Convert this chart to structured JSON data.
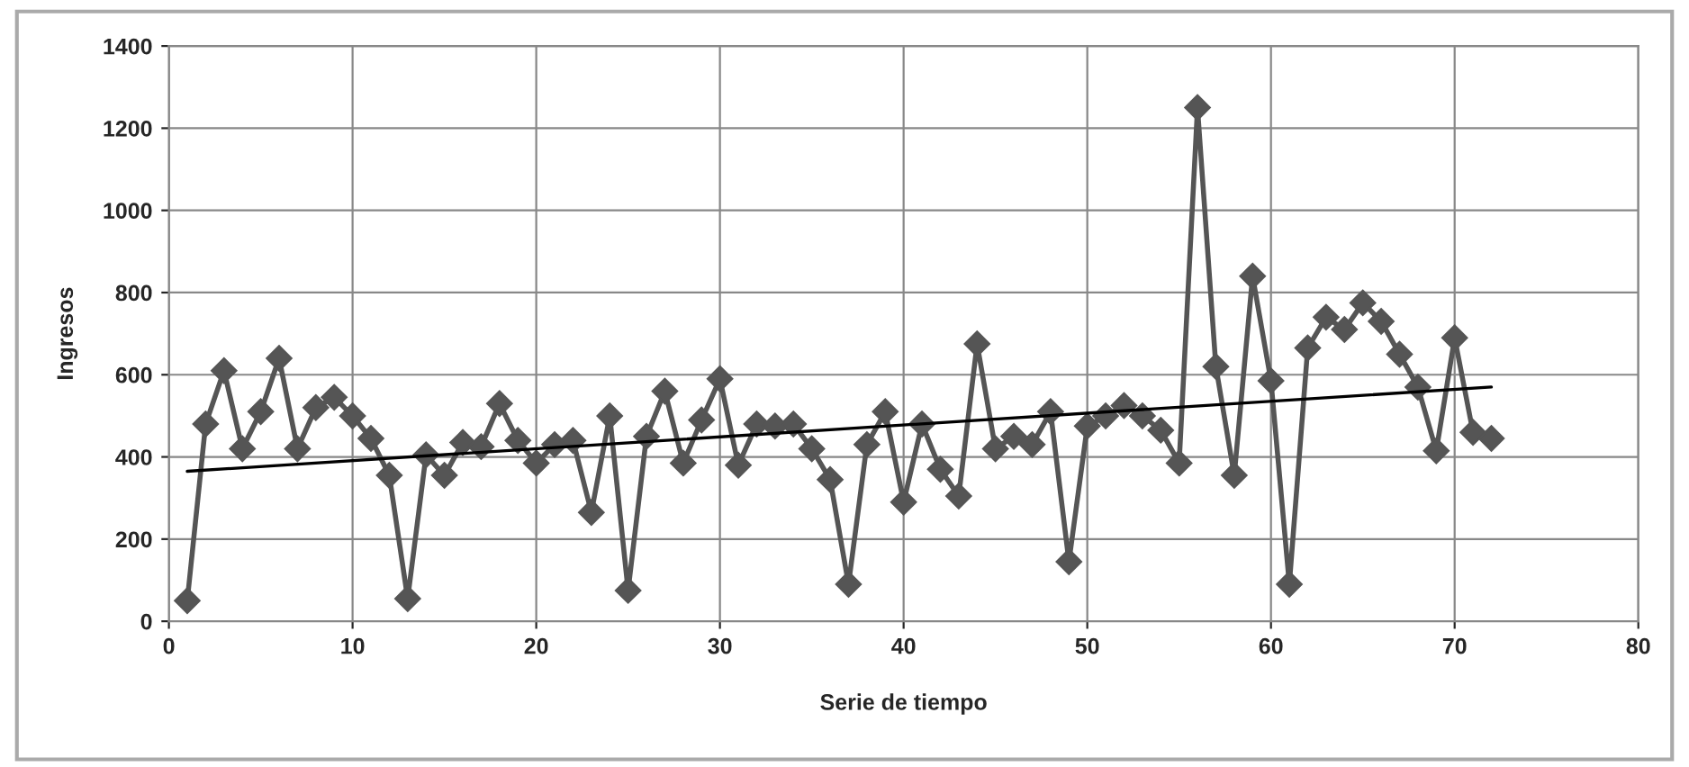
{
  "chart_data": {
    "type": "line",
    "xlabel": "Serie de tiempo",
    "ylabel": "Ingresos",
    "xlim": [
      0,
      80
    ],
    "xticks": [
      0,
      10,
      20,
      30,
      40,
      50,
      60,
      70,
      80
    ],
    "ylim": [
      0,
      1400
    ],
    "yticks": [
      0,
      200,
      400,
      600,
      800,
      1000,
      1200,
      1400
    ],
    "grid": true,
    "legend": false,
    "series": [
      {
        "color": "#555555",
        "marker": "diamond",
        "line_style": "solid",
        "x": [
          1,
          2,
          3,
          4,
          5,
          6,
          7,
          8,
          9,
          10,
          11,
          12,
          13,
          14,
          15,
          16,
          17,
          18,
          19,
          20,
          21,
          22,
          23,
          24,
          25,
          26,
          27,
          28,
          29,
          30,
          31,
          32,
          33,
          34,
          35,
          36,
          37,
          38,
          39,
          40,
          41,
          42,
          43,
          44,
          45,
          46,
          47,
          48,
          49,
          50,
          51,
          52,
          53,
          54,
          55,
          56,
          57,
          58,
          59,
          60,
          61,
          62,
          63,
          64,
          65,
          66,
          67,
          68,
          69,
          70,
          71,
          72
        ],
        "values": [
          50,
          480,
          610,
          420,
          510,
          640,
          420,
          520,
          545,
          500,
          445,
          355,
          55,
          405,
          355,
          435,
          425,
          530,
          440,
          385,
          430,
          440,
          265,
          500,
          75,
          450,
          560,
          385,
          490,
          590,
          380,
          480,
          475,
          480,
          420,
          345,
          90,
          430,
          510,
          290,
          480,
          370,
          305,
          675,
          420,
          450,
          430,
          510,
          145,
          475,
          500,
          525,
          500,
          465,
          385,
          1250,
          620,
          355,
          840,
          585,
          90,
          665,
          740,
          710,
          775,
          730,
          650,
          570,
          415,
          690,
          460,
          445
        ]
      },
      {
        "color": "#000000",
        "marker": "none",
        "line_style": "solid",
        "x": [
          1,
          72
        ],
        "values": [
          365,
          570
        ]
      }
    ]
  }
}
